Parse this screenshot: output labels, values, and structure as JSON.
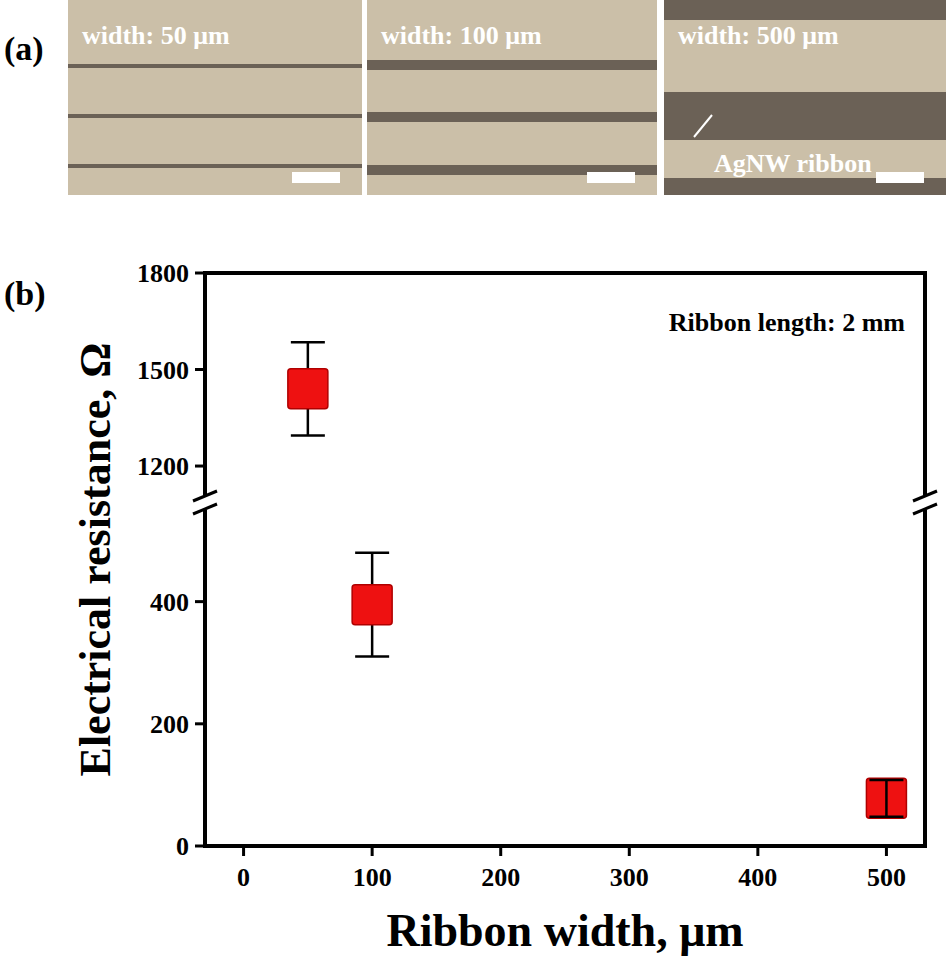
{
  "panel_a": {
    "label": "(a)",
    "images": [
      {
        "caption": "width: 50 μm"
      },
      {
        "caption": "width: 100 μm"
      },
      {
        "caption": "width: 500 μm"
      }
    ],
    "annotation": "AgNW ribbon"
  },
  "chart_data": {
    "type": "scatter",
    "panel_label": "(b)",
    "annotation": "Ribbon length: 2 mm",
    "x_label": "Ribbon width, μm",
    "y_label": "Electrical resistance, Ω",
    "x": [
      50,
      100,
      500
    ],
    "values": [
      1440,
      395,
      78
    ],
    "errors": [
      145,
      85,
      30
    ],
    "color": "#ee1111",
    "marker": "square",
    "xlim": [
      -30,
      530
    ],
    "xticks": [
      0,
      100,
      200,
      300,
      400,
      500
    ],
    "ylim": [
      0,
      1800
    ],
    "y_break": [
      550,
      1110
    ],
    "yticks": [
      0,
      200,
      400,
      1200,
      1500,
      1800
    ]
  }
}
